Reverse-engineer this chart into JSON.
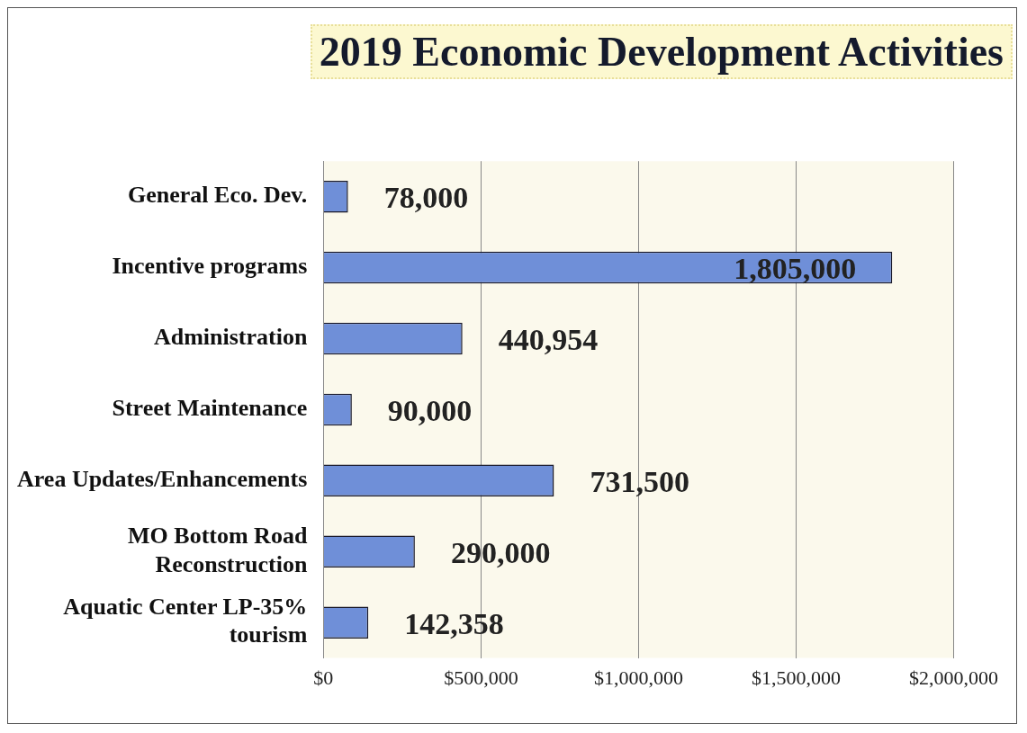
{
  "chart_data": {
    "type": "bar",
    "orientation": "horizontal",
    "title": "2019 Economic Development Activities",
    "categories": [
      "General Eco. Dev.",
      "Incentive programs",
      "Administration",
      "Street Maintenance",
      "Area Updates/Enhancements",
      "MO Bottom Road Reconstruction",
      "Aquatic Center LP-35% tourism"
    ],
    "values": [
      78000,
      1805000,
      440954,
      90000,
      731500,
      290000,
      142358
    ],
    "value_labels": [
      "78,000",
      "1,805,000",
      "440,954",
      "90,000",
      "731,500",
      "290,000",
      "142,358"
    ],
    "color": "#6f8fd8",
    "grid": "x",
    "legend": false,
    "xlim": [
      0,
      2000000
    ],
    "xticks": [
      {
        "value": 0,
        "label": "$0"
      },
      {
        "value": 500000,
        "label": "$500,000"
      },
      {
        "value": 1000000,
        "label": "$1,000,000"
      },
      {
        "value": 1500000,
        "label": "$1,500,000"
      },
      {
        "value": 2000000,
        "label": "$2,000,000"
      }
    ]
  }
}
